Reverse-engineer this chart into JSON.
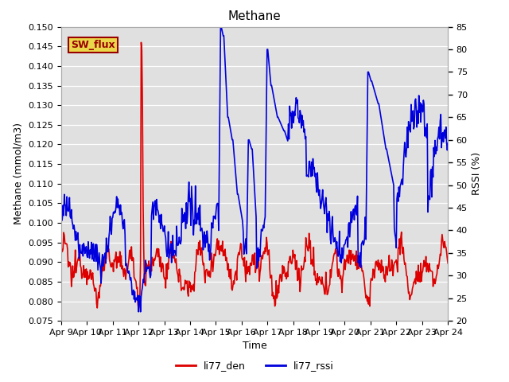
{
  "title": "Methane",
  "xlabel": "Time",
  "ylabel_left": "Methane (mmol/m3)",
  "ylabel_right": "RSSI (%)",
  "ylim_left": [
    0.075,
    0.15
  ],
  "ylim_right": [
    20,
    85
  ],
  "yticks_left": [
    0.075,
    0.08,
    0.085,
    0.09,
    0.095,
    0.1,
    0.105,
    0.11,
    0.115,
    0.12,
    0.125,
    0.13,
    0.135,
    0.14,
    0.145,
    0.15
  ],
  "yticks_right": [
    20,
    25,
    30,
    35,
    40,
    45,
    50,
    55,
    60,
    65,
    70,
    75,
    80,
    85
  ],
  "bg_color": "#e0e0e0",
  "fig_color": "#ffffff",
  "line1_color": "#dd0000",
  "line2_color": "#0000dd",
  "legend1": "li77_den",
  "legend2": "li77_rssi",
  "annotation_text": "SW_flux",
  "annotation_bg": "#e8d84a",
  "annotation_border": "#990000",
  "x_tick_labels": [
    "Apr 9",
    "Apr 10",
    "Apr 11",
    "Apr 12",
    "Apr 13",
    "Apr 14",
    "Apr 15",
    "Apr 16",
    "Apr 17",
    "Apr 18",
    "Apr 19",
    "Apr 20",
    "Apr 21",
    "Apr 22",
    "Apr 23",
    "Apr 24"
  ],
  "n_points": 600
}
